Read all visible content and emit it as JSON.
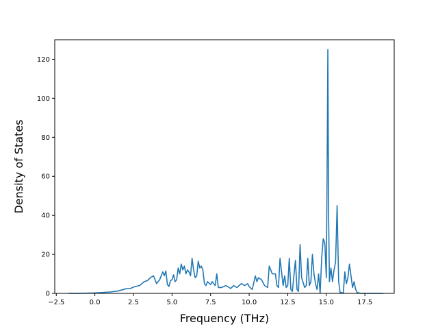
{
  "chart_data": {
    "type": "line",
    "title": "",
    "xlabel": "Frequency (THz)",
    "ylabel": "Density of States",
    "xlim": [
      -2.6,
      19.4
    ],
    "ylim": [
      0,
      130
    ],
    "x_ticks": [
      -2.5,
      0.0,
      2.5,
      5.0,
      7.5,
      10.0,
      12.5,
      15.0,
      17.5
    ],
    "x_tick_labels": [
      "−2.5",
      "0.0",
      "2.5",
      "5.0",
      "7.5",
      "10.0",
      "12.5",
      "15.0",
      "17.5"
    ],
    "y_ticks": [
      0,
      20,
      40,
      60,
      80,
      100,
      120
    ],
    "y_tick_labels": [
      "0",
      "20",
      "40",
      "60",
      "80",
      "100",
      "120"
    ],
    "grid": false,
    "legend": "none",
    "colors": {
      "line": "#1f77b4",
      "axes": "#000000",
      "background": "#ffffff"
    },
    "series": [
      {
        "x": [
          -1.7,
          -1.0,
          0.0,
          1.0,
          1.5,
          2.0,
          2.3,
          2.6,
          2.9,
          3.2,
          3.4,
          3.6,
          3.8,
          4.0,
          4.2,
          4.4,
          4.5,
          4.6,
          4.7,
          4.8,
          4.9,
          5.0,
          5.1,
          5.2,
          5.3,
          5.4,
          5.5,
          5.6,
          5.7,
          5.8,
          5.9,
          6.0,
          6.1,
          6.2,
          6.3,
          6.4,
          6.5,
          6.6,
          6.7,
          6.8,
          6.9,
          7.0,
          7.1,
          7.2,
          7.3,
          7.5,
          7.6,
          7.8,
          7.9,
          8.0,
          8.2,
          8.5,
          8.8,
          9.0,
          9.2,
          9.5,
          9.7,
          9.9,
          10.0,
          10.2,
          10.4,
          10.5,
          10.6,
          10.8,
          11.0,
          11.2,
          11.3,
          11.5,
          11.7,
          11.8,
          11.9,
          12.0,
          12.2,
          12.3,
          12.4,
          12.5,
          12.6,
          12.7,
          12.8,
          12.9,
          13.0,
          13.1,
          13.2,
          13.3,
          13.4,
          13.6,
          13.7,
          13.8,
          13.9,
          14.0,
          14.1,
          14.2,
          14.3,
          14.4,
          14.5,
          14.6,
          14.7,
          14.8,
          14.9,
          15.0,
          15.05,
          15.1,
          15.15,
          15.2,
          15.3,
          15.4,
          15.5,
          15.6,
          15.65,
          15.7,
          15.8,
          15.9,
          16.0,
          16.1,
          16.2,
          16.3,
          16.4,
          16.5,
          16.6,
          16.7,
          16.8,
          16.9,
          17.0,
          17.2,
          17.5,
          18.0,
          18.7
        ],
        "y": [
          0.0,
          0.0,
          0.2,
          0.7,
          1.2,
          2.3,
          2.5,
          3.5,
          4.0,
          6.0,
          6.5,
          8.0,
          9.0,
          5.0,
          7.0,
          11.0,
          9.0,
          11.5,
          4.5,
          3.5,
          6.5,
          7.0,
          9.5,
          6.0,
          7.0,
          13.0,
          10.0,
          15.0,
          12.0,
          14.0,
          10.0,
          12.0,
          11.0,
          9.0,
          18.0,
          12.0,
          8.0,
          9.0,
          16.5,
          13.0,
          14.0,
          12.0,
          5.0,
          4.0,
          6.0,
          4.5,
          6.0,
          4.0,
          10.0,
          3.0,
          3.0,
          4.0,
          2.5,
          4.0,
          3.0,
          5.0,
          4.0,
          5.0,
          3.5,
          2.0,
          9.0,
          6.0,
          8.0,
          7.0,
          4.0,
          3.0,
          14.0,
          10.0,
          10.0,
          4.0,
          3.0,
          18.0,
          4.0,
          9.0,
          3.0,
          4.0,
          18.0,
          2.0,
          1.0,
          9.0,
          17.0,
          2.0,
          1.0,
          25.0,
          8.0,
          3.0,
          4.0,
          18.0,
          4.0,
          6.0,
          20.0,
          10.0,
          5.0,
          2.0,
          10.0,
          0.0,
          18.0,
          28.0,
          26.0,
          8.0,
          60.0,
          125.0,
          40.0,
          6.0,
          13.0,
          6.0,
          12.0,
          16.0,
          30.0,
          45.0,
          6.0,
          0.0,
          0.5,
          0.0,
          11.0,
          5.0,
          8.0,
          15.0,
          9.0,
          3.0,
          6.0,
          2.0,
          0.5,
          0.0,
          0.0,
          0.0,
          0.0
        ]
      }
    ]
  }
}
